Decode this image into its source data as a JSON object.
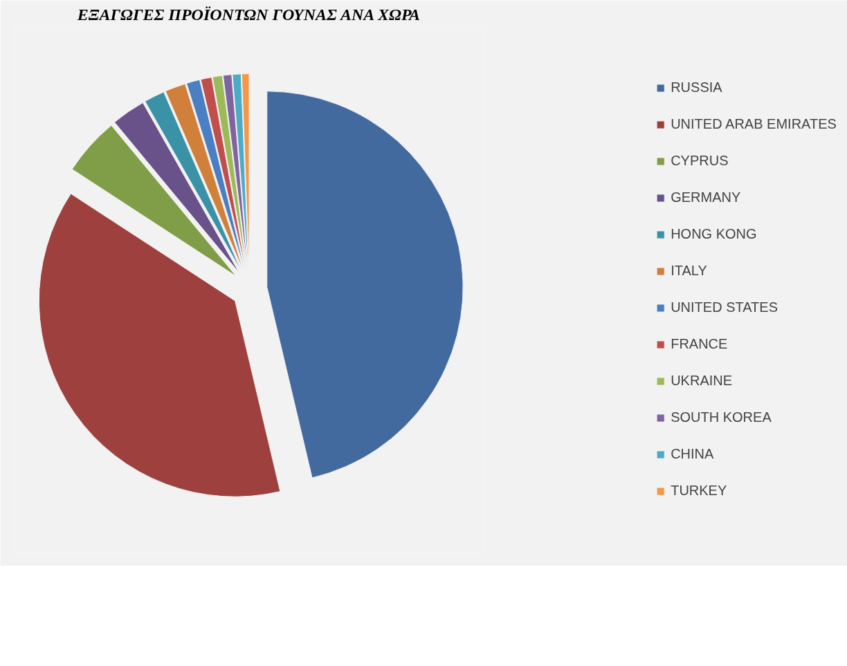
{
  "chart_data": {
    "type": "pie",
    "title": "ΕΞΑΓΩΓΕΣ ΠΡΟΪΟΝΤΩΝ ΓΟΥΝΑΣ ΑΝΑ ΧΩΡΑ",
    "categories": [
      "RUSSIA",
      "UNITED ARAB EMIRATES",
      "CYPRUS",
      "GERMANY",
      "HONG KONG",
      "ITALY",
      "UNITED STATES",
      "FRANCE",
      "UKRAINE",
      "SOUTH KOREA",
      "CHINA",
      "TURKEY"
    ],
    "values": [
      46.3,
      37.9,
      4.8,
      2.8,
      1.7,
      1.7,
      1.1,
      0.9,
      0.8,
      0.7,
      0.7,
      0.6
    ],
    "colors": [
      "#426a9e",
      "#9e403e",
      "#809d47",
      "#69528a",
      "#3a92a7",
      "#d1803b",
      "#4a7fc3",
      "#c24e4c",
      "#9bbb59",
      "#8064a2",
      "#4bacc6",
      "#f79646"
    ],
    "legend": "right"
  }
}
